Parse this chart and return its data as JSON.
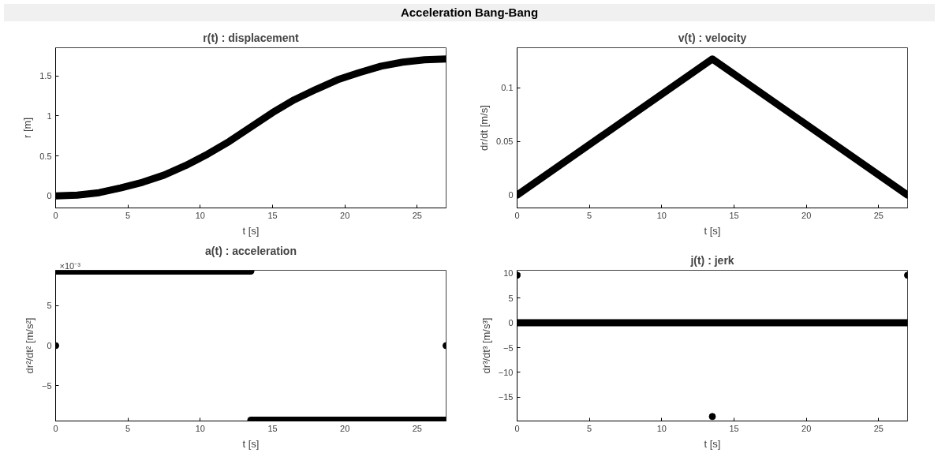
{
  "chart_data": [
    {
      "type": "other",
      "title": "Acceleration Bang-Bang"
    },
    {
      "type": "line",
      "title": "r(t) : displacement",
      "xlabel": "t [s]",
      "ylabel": "r [m]",
      "xlim": [
        0,
        27
      ],
      "ylim": [
        -0.15,
        1.85
      ],
      "xticks": [
        0,
        5,
        10,
        15,
        20,
        25
      ],
      "yticks": [
        0,
        0.5,
        1,
        1.5
      ],
      "series": [
        {
          "color": "#000000",
          "x": [
            0,
            1.5,
            3,
            4.5,
            6,
            7.5,
            9,
            10.5,
            12,
            13.5,
            15,
            16.5,
            18,
            19.5,
            21,
            22.5,
            24,
            25.5,
            27
          ],
          "values": [
            0,
            0.01,
            0.04,
            0.1,
            0.17,
            0.26,
            0.38,
            0.52,
            0.68,
            0.86,
            1.04,
            1.2,
            1.33,
            1.45,
            1.54,
            1.62,
            1.67,
            1.7,
            1.71
          ]
        }
      ]
    },
    {
      "type": "line",
      "title": "v(t) : velocity",
      "xlabel": "t [s]",
      "ylabel": "dr/dt [m/s]",
      "xlim": [
        0,
        27
      ],
      "ylim": [
        -0.012,
        0.1375
      ],
      "xticks": [
        0,
        5,
        10,
        15,
        20,
        25
      ],
      "yticks": [
        0,
        0.05,
        0.1
      ],
      "series": [
        {
          "color": "#000000",
          "x": [
            0,
            13.5,
            27
          ],
          "values": [
            0,
            0.127,
            0
          ]
        }
      ]
    },
    {
      "type": "line",
      "title": "a(t) : acceleration",
      "xlabel": "t [s]",
      "ylabel": "dr²/dt² [m/s²]",
      "xlim": [
        0,
        27
      ],
      "ylim": [
        -9.4,
        9.4
      ],
      "xticks": [
        0,
        5,
        10,
        15,
        20,
        25
      ],
      "yticks": [
        -5,
        0,
        5
      ],
      "annotations": [
        "×10⁻³"
      ],
      "series": [
        {
          "color": "#000000",
          "x": [
            0.1,
            13.5
          ],
          "values": [
            9.3,
            9.3
          ]
        },
        {
          "color": "#000000",
          "x": [
            13.5,
            27
          ],
          "values": [
            -9.3,
            -9.3
          ]
        },
        {
          "type": "scatter",
          "marker": "circle",
          "color": "#000000",
          "x": [
            0,
            27
          ],
          "values": [
            0,
            0
          ]
        }
      ]
    },
    {
      "type": "line",
      "title": "j(t) : jerk",
      "xlabel": "t [s]",
      "ylabel": "dr³/dt³ [m/s³]",
      "xlim": [
        0,
        27
      ],
      "ylim": [
        -19.8,
        10.6
      ],
      "xticks": [
        0,
        5,
        10,
        15,
        20,
        25
      ],
      "yticks": [
        -15,
        -10,
        -5,
        0,
        5,
        10
      ],
      "series": [
        {
          "color": "#000000",
          "x": [
            0,
            27
          ],
          "values": [
            0,
            0
          ]
        },
        {
          "type": "scatter",
          "marker": "circle",
          "color": "#000000",
          "x": [
            0,
            27,
            13.5
          ],
          "values": [
            9.6,
            9.6,
            -18.9
          ]
        }
      ]
    }
  ]
}
